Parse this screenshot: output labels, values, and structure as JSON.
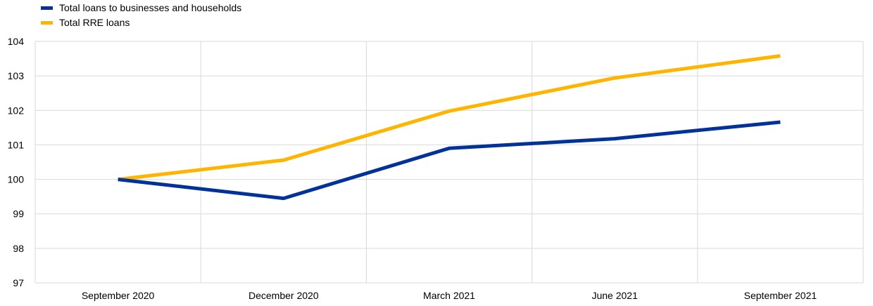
{
  "chart_data": {
    "type": "line",
    "title": "",
    "xlabel": "",
    "ylabel": "",
    "categories": [
      "September 2020",
      "December 2020",
      "March 2021",
      "June 2021",
      "September 2021"
    ],
    "series": [
      {
        "name": "Total loans to businesses and households",
        "color": "#003299",
        "values": [
          100.0,
          99.45,
          100.9,
          101.18,
          101.66
        ]
      },
      {
        "name": "Total RRE loans",
        "color": "#FFB400",
        "values": [
          100.0,
          100.56,
          101.98,
          102.94,
          103.58
        ]
      }
    ],
    "ylim": [
      97,
      104
    ],
    "yticks": [
      97,
      98,
      99,
      100,
      101,
      102,
      103,
      104
    ],
    "grid": true,
    "legend_position": "top-left"
  }
}
